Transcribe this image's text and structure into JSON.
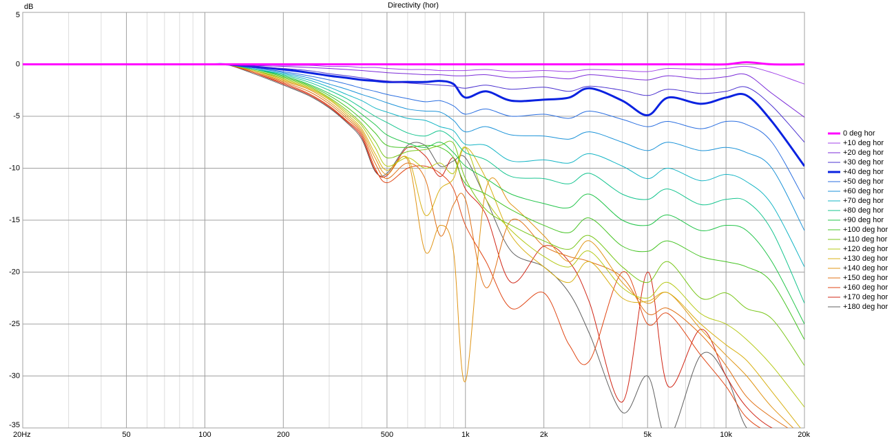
{
  "chart_data": {
    "type": "line",
    "title": "Directivity (hor)",
    "y_label": "dB",
    "x_scale": "log",
    "grid": true,
    "legend": "right",
    "xlim": [
      20,
      20000
    ],
    "ylim": [
      -35,
      5
    ],
    "xticks": [
      {
        "value": 20,
        "label": "20Hz"
      },
      50,
      100,
      200,
      500,
      {
        "value": 1000,
        "label": "1k"
      },
      {
        "value": 2000,
        "label": "2k"
      },
      {
        "value": 5000,
        "label": "5k"
      },
      {
        "value": 10000,
        "label": "10k"
      },
      {
        "value": 20000,
        "label": "20k"
      }
    ],
    "x_minor_grid": [
      30,
      40,
      60,
      70,
      80,
      90,
      300,
      400,
      600,
      700,
      800,
      900,
      3000,
      4000,
      6000,
      7000,
      8000,
      9000
    ],
    "yticks": [
      5,
      0,
      -5,
      -10,
      -15,
      -20,
      -25,
      -30,
      -35
    ],
    "x": [
      20,
      50,
      100,
      120,
      150,
      200,
      250,
      300,
      350,
      400,
      450,
      500,
      600,
      700,
      800,
      900,
      1000,
      1200,
      1500,
      2000,
      2500,
      3000,
      4000,
      5000,
      6000,
      8000,
      10000,
      12000,
      15000,
      20000
    ],
    "series": [
      {
        "name": "0 deg hor",
        "color": "#ff00ff",
        "width": 3,
        "values": [
          0,
          0,
          0,
          0,
          0,
          0,
          0,
          0,
          0,
          0,
          0,
          0,
          0,
          0,
          0,
          0,
          0,
          0,
          0,
          0,
          0,
          0,
          0,
          0,
          0,
          0,
          0,
          0.2,
          0,
          0
        ]
      },
      {
        "name": "+10 deg hor",
        "color": "#a040e8",
        "width": 1,
        "values": [
          0,
          0,
          0,
          0,
          0,
          -0.1,
          -0.1,
          -0.2,
          -0.2,
          -0.3,
          -0.3,
          -0.4,
          -0.5,
          -0.5,
          -0.6,
          -0.6,
          -0.6,
          -0.5,
          -0.7,
          -0.6,
          -0.7,
          -0.5,
          -0.6,
          -0.7,
          -0.4,
          -0.5,
          -0.4,
          -0.2,
          -0.8,
          -1.9
        ]
      },
      {
        "name": "+20 deg hor",
        "color": "#7a2ad8",
        "width": 1,
        "values": [
          0,
          0,
          0,
          0,
          -0.1,
          -0.2,
          -0.3,
          -0.4,
          -0.5,
          -0.6,
          -0.7,
          -0.8,
          -0.9,
          -1.0,
          -1.0,
          -1.1,
          -1.1,
          -1.0,
          -1.3,
          -1.2,
          -1.4,
          -1.0,
          -1.3,
          -1.5,
          -1.1,
          -1.4,
          -1.2,
          -1.0,
          -2.8,
          -5.1
        ]
      },
      {
        "name": "+30 deg hor",
        "color": "#4a30d0",
        "width": 1,
        "values": [
          0,
          0,
          0,
          0,
          -0.2,
          -0.4,
          -0.6,
          -0.9,
          -1.1,
          -1.3,
          -1.5,
          -1.6,
          -1.8,
          -1.9,
          -2.0,
          -2.1,
          -2.3,
          -2.0,
          -2.4,
          -2.2,
          -2.6,
          -2.1,
          -2.5,
          -3.0,
          -2.4,
          -2.8,
          -2.6,
          -2.2,
          -4.0,
          -7.5
        ]
      },
      {
        "name": "+40 deg hor",
        "color": "#0a22e0",
        "width": 3,
        "values": [
          0,
          0,
          0,
          0,
          -0.2,
          -0.5,
          -0.8,
          -1.1,
          -1.3,
          -1.5,
          -1.6,
          -1.7,
          -1.7,
          -1.7,
          -1.6,
          -1.9,
          -3.2,
          -2.6,
          -3.5,
          -3.4,
          -3.2,
          -2.3,
          -3.5,
          -4.9,
          -3.2,
          -3.8,
          -3.2,
          -3.0,
          -5.5,
          -9.8
        ]
      },
      {
        "name": "+50 deg hor",
        "color": "#2a6ee0",
        "width": 1,
        "values": [
          0,
          0,
          0,
          0,
          -0.3,
          -0.7,
          -1.1,
          -1.5,
          -1.9,
          -2.3,
          -2.6,
          -2.9,
          -3.3,
          -3.6,
          -3.5,
          -4.0,
          -4.8,
          -4.3,
          -5.0,
          -4.8,
          -5.2,
          -4.5,
          -5.3,
          -6.0,
          -5.5,
          -6.2,
          -5.5,
          -5.8,
          -7.5,
          -13.0
        ]
      },
      {
        "name": "+60 deg hor",
        "color": "#1a92d8",
        "width": 1,
        "values": [
          0,
          0,
          0,
          0,
          -0.3,
          -0.8,
          -1.3,
          -1.9,
          -2.4,
          -2.9,
          -3.3,
          -3.7,
          -4.3,
          -4.5,
          -4.6,
          -5.4,
          -6.5,
          -6.0,
          -6.8,
          -6.9,
          -7.2,
          -6.5,
          -7.5,
          -8.3,
          -7.5,
          -8.3,
          -8.0,
          -8.5,
          -10.0,
          -16.0
        ]
      },
      {
        "name": "+70 deg hor",
        "color": "#12b4c4",
        "width": 1,
        "values": [
          0,
          0,
          0,
          0,
          -0.4,
          -0.9,
          -1.5,
          -2.2,
          -2.9,
          -3.5,
          -4.2,
          -4.6,
          -5.2,
          -5.4,
          -6.0,
          -6.4,
          -7.7,
          -7.8,
          -9.3,
          -9.2,
          -9.5,
          -8.6,
          -9.8,
          -11.0,
          -10.0,
          -11.2,
          -10.6,
          -11.3,
          -13.5,
          -19.5
        ]
      },
      {
        "name": "+80 deg hor",
        "color": "#14c48e",
        "width": 1,
        "values": [
          0,
          0,
          0,
          0,
          -0.4,
          -1.0,
          -1.7,
          -2.5,
          -3.3,
          -4.2,
          -5.0,
          -5.6,
          -6.6,
          -6.9,
          -6.4,
          -7.2,
          -8.5,
          -9.2,
          -10.8,
          -11.0,
          -11.5,
          -10.5,
          -12.5,
          -13.0,
          -12.0,
          -13.5,
          -13.0,
          -13.2,
          -16.0,
          -23.0
        ]
      },
      {
        "name": "+90 deg hor",
        "color": "#22c44a",
        "width": 1,
        "values": [
          0,
          0,
          0,
          0,
          -0.4,
          -1.1,
          -1.9,
          -2.8,
          -3.7,
          -4.8,
          -5.8,
          -6.8,
          -7.6,
          -8.0,
          -7.5,
          -8.5,
          -9.8,
          -11.0,
          -12.5,
          -13.4,
          -13.8,
          -12.5,
          -15.0,
          -15.5,
          -14.5,
          -16.0,
          -15.5,
          -16.0,
          -19.0,
          -25.0
        ]
      },
      {
        "name": "+100 deg hor",
        "color": "#46c424",
        "width": 1,
        "values": [
          0,
          0,
          0,
          0,
          -0.4,
          -1.2,
          -2.0,
          -3.0,
          -4.1,
          -5.3,
          -6.6,
          -7.8,
          -8.0,
          -7.8,
          -8.0,
          -9.0,
          -11.5,
          -12.5,
          -14.0,
          -15.5,
          -16.2,
          -14.8,
          -17.5,
          -18.0,
          -17.0,
          -18.5,
          -19.0,
          -19.5,
          -21.0,
          -26.5
        ]
      },
      {
        "name": "+110 deg hor",
        "color": "#78c618",
        "width": 1,
        "values": [
          0,
          0,
          0,
          0,
          -0.5,
          -1.3,
          -2.1,
          -3.2,
          -4.4,
          -5.7,
          -7.4,
          -9.0,
          -8.4,
          -8.2,
          -7.8,
          -7.6,
          -11.0,
          -14.0,
          -15.5,
          -17.0,
          -17.8,
          -16.5,
          -19.5,
          -21.0,
          -19.0,
          -22.5,
          -22.0,
          -23.5,
          -24.5,
          -29.0
        ]
      },
      {
        "name": "+120 deg hor",
        "color": "#b4c814",
        "width": 1,
        "values": [
          0,
          0,
          0,
          0,
          -0.5,
          -1.4,
          -2.2,
          -3.3,
          -4.6,
          -5.9,
          -8.0,
          -9.8,
          -9.0,
          -10.0,
          -9.5,
          -10.5,
          -8.0,
          -13.0,
          -16.0,
          -18.5,
          -19.5,
          -18.0,
          -21.5,
          -22.5,
          -21.0,
          -24.0,
          -25.0,
          -26.5,
          -29.0,
          -33.0
        ]
      },
      {
        "name": "+130 deg hor",
        "color": "#d8b014",
        "width": 1,
        "values": [
          0,
          0,
          0,
          0,
          -0.5,
          -1.5,
          -2.3,
          -3.4,
          -4.8,
          -6.2,
          -8.6,
          -10.2,
          -9.0,
          -14.5,
          -12.0,
          -11.0,
          -8.0,
          -11.0,
          -16.5,
          -19.5,
          -21.0,
          -19.0,
          -22.5,
          -22.8,
          -22.0,
          -25.0,
          -27.0,
          -28.5,
          -31.5,
          -35.5
        ]
      },
      {
        "name": "+140 deg hor",
        "color": "#e09414",
        "width": 1,
        "values": [
          0,
          0,
          0,
          0,
          -0.6,
          -1.6,
          -2.4,
          -3.6,
          -5.0,
          -6.4,
          -9.0,
          -10.6,
          -9.2,
          -18.0,
          -15.5,
          -18.0,
          -30.5,
          -12.0,
          -13.5,
          -16.5,
          -19.0,
          -17.0,
          -21.0,
          -23.0,
          -22.0,
          -25.5,
          -28.0,
          -30.0,
          -33.0,
          -36.0
        ]
      },
      {
        "name": "+150 deg hor",
        "color": "#e07014",
        "width": 1,
        "values": [
          0,
          0,
          0,
          0,
          -0.6,
          -1.7,
          -2.6,
          -3.8,
          -5.2,
          -6.6,
          -9.5,
          -11.0,
          -9.5,
          -11.0,
          -16.5,
          -13.5,
          -13.0,
          -21.5,
          -15.0,
          -17.5,
          -18.5,
          -19.0,
          -20.5,
          -24.0,
          -23.5,
          -26.0,
          -29.0,
          -32.0,
          -34.0,
          -36.0
        ]
      },
      {
        "name": "+160 deg hor",
        "color": "#e04614",
        "width": 1,
        "values": [
          0,
          0,
          0,
          0,
          -0.7,
          -1.8,
          -2.8,
          -4.0,
          -5.4,
          -6.8,
          -10.0,
          -11.4,
          -10.0,
          -9.8,
          -10.5,
          -12.0,
          -15.5,
          -19.0,
          -23.5,
          -22.0,
          -27.0,
          -28.5,
          -20.0,
          -25.0,
          -24.0,
          -28.0,
          -31.0,
          -34.0,
          -35.5,
          -36.0
        ]
      },
      {
        "name": "+170 deg hor",
        "color": "#d02414",
        "width": 1,
        "values": [
          0,
          0,
          0,
          0,
          -0.7,
          -1.9,
          -2.9,
          -4.1,
          -5.5,
          -7.0,
          -10.2,
          -10.7,
          -8.0,
          -8.8,
          -10.8,
          -9.0,
          -12.0,
          -14.5,
          -21.0,
          -17.5,
          -19.0,
          -23.0,
          -32.5,
          -20.0,
          -31.0,
          -25.5,
          -30.0,
          -33.0,
          -35.0,
          -36.0
        ]
      },
      {
        "name": "+180 deg hor",
        "color": "#606060",
        "width": 1,
        "values": [
          0,
          0,
          0,
          0,
          -0.8,
          -2.0,
          -3.0,
          -4.2,
          -5.6,
          -7.2,
          -10.3,
          -10.5,
          -7.8,
          -7.8,
          -9.8,
          -9.3,
          -9.0,
          -13.0,
          -18.0,
          -19.5,
          -22.0,
          -26.0,
          -33.5,
          -30.0,
          -36.0,
          -28.0,
          -30.0,
          -35.0,
          -36.0,
          -36.0
        ]
      }
    ]
  }
}
